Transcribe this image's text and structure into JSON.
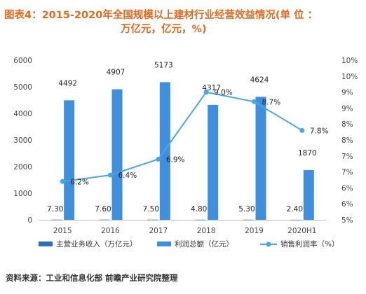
{
  "title_line1": "图表4：2015-2020年全国规模以上建材行业经营效益情况(单 位 ：",
  "title_line2": "万亿元，亿元，%)",
  "source": "资料来源：工业和信息化部 前瞻产业研究院整理",
  "colors": {
    "title": "#e06a20",
    "revenue_bar": "#2e6fba",
    "profit_bar": "#3f8fde",
    "margin_line": "#4aa5e6",
    "grid": "#e0e0e0",
    "axis_text": "#444444"
  },
  "chart_data": {
    "type": "bar",
    "categories": [
      "2015",
      "2016",
      "2017",
      "2018",
      "2019",
      "2020H1"
    ],
    "series": [
      {
        "name": "主营业务收入（万亿元）",
        "type": "bar",
        "axis": "left",
        "values": [
          7.3,
          7.6,
          7.5,
          4.8,
          5.3,
          2.4
        ],
        "labels": [
          "7.30",
          "7.60",
          "7.50",
          "4.80",
          "5.30",
          "2.40"
        ]
      },
      {
        "name": "利润总额（亿元）",
        "type": "bar",
        "axis": "left",
        "values": [
          4492,
          4907,
          5173,
          4317,
          4624,
          1870
        ],
        "labels": [
          "4492",
          "4907",
          "5173",
          "4317",
          "4624",
          "1870"
        ]
      },
      {
        "name": "销售利润率（%）",
        "type": "line",
        "axis": "right",
        "values": [
          6.2,
          6.4,
          6.9,
          9.0,
          8.7,
          7.8
        ],
        "labels": [
          "6.2%",
          "6.4%",
          "6.9%",
          "9.0%",
          "8.7%",
          "7.8%"
        ]
      }
    ],
    "y_left": {
      "min": 0,
      "max": 6000,
      "ticks": [
        0,
        1000,
        2000,
        3000,
        4000,
        5000,
        6000
      ],
      "tick_labels": [
        "0",
        "1000",
        "2000",
        "3000",
        "4000",
        "5000",
        "6000"
      ]
    },
    "y_right": {
      "min": 5,
      "max": 10,
      "ticks": [
        5,
        5.5,
        6,
        6.5,
        7,
        7.5,
        8,
        8.5,
        9,
        9.5,
        10
      ],
      "tick_labels": [
        "5%",
        "6%",
        "6%",
        "7%",
        "7%",
        "8%",
        "8%",
        "9%",
        "9%",
        "10%",
        "10%"
      ]
    },
    "legend_position": "bottom",
    "grid": false
  }
}
